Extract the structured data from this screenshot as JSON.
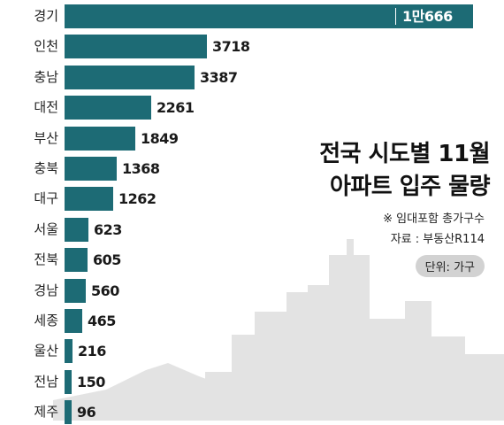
{
  "chart_data": {
    "type": "bar",
    "orientation": "horizontal",
    "title": "전국 시도별 11월 아파트 입주 물량",
    "title_lines": [
      "전국 시도별 11월",
      "아파트 입주 물량"
    ],
    "notes": [
      "※ 임대포함 총가구수",
      "자료 : 부동산R114"
    ],
    "unit_label": "단위: 가구",
    "categories": [
      "경기",
      "인천",
      "충남",
      "대전",
      "부산",
      "충북",
      "대구",
      "서울",
      "전북",
      "경남",
      "세종",
      "울산",
      "전남",
      "제주"
    ],
    "values": [
      10666,
      3718,
      3387,
      2261,
      1849,
      1368,
      1262,
      623,
      605,
      560,
      465,
      216,
      150,
      96
    ],
    "value_labels": [
      "1만666",
      "3718",
      "3387",
      "2261",
      "1849",
      "1368",
      "1262",
      "623",
      "605",
      "560",
      "465",
      "216",
      "150",
      "96"
    ],
    "bar_color": "#1d6b75",
    "background_color": "#ffffff",
    "skyline_color": "#e3e3e3"
  }
}
